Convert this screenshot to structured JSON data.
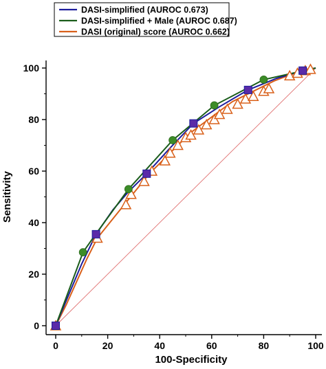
{
  "chart_data": {
    "type": "line",
    "xlabel": "100-Specificity",
    "ylabel": "Sensitivity",
    "xlim": [
      0,
      100
    ],
    "ylim": [
      0,
      100
    ],
    "xticks": [
      0,
      20,
      40,
      60,
      80,
      100
    ],
    "yticks": [
      0,
      20,
      40,
      60,
      80,
      100
    ],
    "grid": false,
    "legend_position": "top-left",
    "reference_line": {
      "from": [
        0,
        0
      ],
      "to": [
        100,
        100
      ],
      "color": "#e07070"
    },
    "series": [
      {
        "name": "DASI-simplified (AUROC 0.673)",
        "color": "#1c1c9c",
        "marker": "square",
        "marker_fill": "#5a2aa8",
        "line_points": [
          [
            0,
            0
          ],
          [
            5,
            12
          ],
          [
            10,
            24
          ],
          [
            15.5,
            35.5
          ],
          [
            22,
            45
          ],
          [
            28,
            52
          ],
          [
            35,
            59
          ],
          [
            44,
            69
          ],
          [
            53,
            78.5
          ],
          [
            63,
            85
          ],
          [
            74,
            91.5
          ],
          [
            85,
            96
          ],
          [
            95,
            99
          ],
          [
            100,
            100
          ]
        ],
        "marker_points": [
          [
            0,
            0
          ],
          [
            15.5,
            35.5
          ],
          [
            35,
            59
          ],
          [
            53,
            78.5
          ],
          [
            74,
            91.5
          ],
          [
            95,
            99
          ]
        ]
      },
      {
        "name": "DASI-simplified + Male (AUROC 0.687)",
        "color": "#1a5c1a",
        "marker": "circle",
        "marker_fill": "#3c8c28",
        "line_points": [
          [
            0,
            0
          ],
          [
            10.5,
            28.5
          ],
          [
            15,
            35
          ],
          [
            28,
            53
          ],
          [
            45,
            72
          ],
          [
            61,
            85.5
          ],
          [
            80,
            95.5
          ],
          [
            100,
            100
          ]
        ],
        "marker_points": [
          [
            10.5,
            28.5
          ],
          [
            28,
            53
          ],
          [
            45,
            72
          ],
          [
            61,
            85.5
          ],
          [
            80,
            95.5
          ]
        ]
      },
      {
        "name": "DASI (original) score (AUROC 0.662)",
        "color": "#d9601a",
        "marker": "triangle",
        "marker_fill": "none",
        "line_points": [
          [
            0,
            0
          ],
          [
            4,
            8
          ],
          [
            8,
            17
          ],
          [
            12,
            26
          ],
          [
            16,
            34
          ],
          [
            20,
            39
          ],
          [
            24,
            44
          ],
          [
            28,
            49
          ],
          [
            32,
            54
          ],
          [
            36,
            59
          ],
          [
            40,
            63
          ],
          [
            44,
            67
          ],
          [
            48,
            71
          ],
          [
            52,
            75
          ],
          [
            56,
            78
          ],
          [
            60,
            81
          ],
          [
            64,
            84
          ],
          [
            68,
            87
          ],
          [
            72,
            89
          ],
          [
            76,
            91
          ],
          [
            80,
            93
          ],
          [
            84,
            95
          ],
          [
            88,
            96.5
          ],
          [
            92,
            98
          ],
          [
            96,
            99
          ],
          [
            100,
            100
          ]
        ],
        "marker_points": [
          [
            0,
            0
          ],
          [
            16,
            34
          ],
          [
            27,
            47
          ],
          [
            29,
            51
          ],
          [
            34,
            56
          ],
          [
            37,
            60
          ],
          [
            42,
            64
          ],
          [
            44,
            67
          ],
          [
            47,
            70
          ],
          [
            50,
            73
          ],
          [
            52,
            74
          ],
          [
            55,
            76
          ],
          [
            58,
            78
          ],
          [
            61,
            80
          ],
          [
            63,
            82
          ],
          [
            66,
            84
          ],
          [
            70,
            86
          ],
          [
            73,
            88
          ],
          [
            76,
            89
          ],
          [
            80,
            91
          ],
          [
            82,
            92
          ],
          [
            90,
            97
          ],
          [
            93,
            98
          ],
          [
            96,
            99
          ],
          [
            98,
            99.5
          ]
        ]
      }
    ]
  }
}
